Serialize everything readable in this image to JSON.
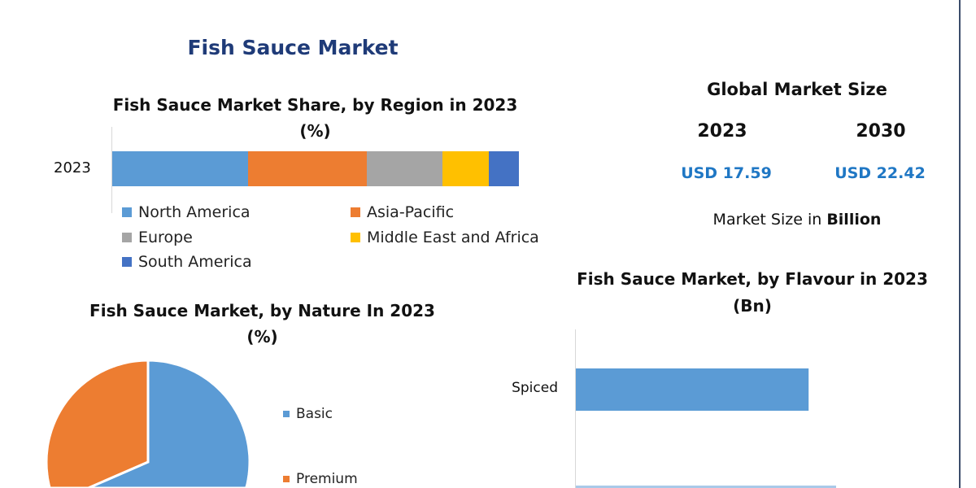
{
  "title": "Fish Sauce Market",
  "market_size": {
    "heading": "Global Market Size",
    "years": [
      "2023",
      "2030"
    ],
    "values": [
      "USD 17.59",
      "USD 22.42"
    ],
    "note_prefix": "Market Size in ",
    "note_unit": "Billion"
  },
  "chart_data": [
    {
      "type": "bar",
      "orientation": "horizontal-stacked",
      "title": "Fish Sauce Market Share, by Region in 2023",
      "subtitle": "(%)",
      "categories": [
        "2023"
      ],
      "series": [
        {
          "name": "North America",
          "values": [
            33.4
          ],
          "color": "#5b9bd5"
        },
        {
          "name": "Asia-Pacific",
          "values": [
            29.2
          ],
          "color": "#ed7d31"
        },
        {
          "name": "Europe",
          "values": [
            18.6
          ],
          "color": "#a5a5a5"
        },
        {
          "name": "Middle East and Africa",
          "values": [
            11.4
          ],
          "color": "#ffc000"
        },
        {
          "name": "South America",
          "values": [
            7.4
          ],
          "color": "#4472c4"
        }
      ],
      "xlim": [
        0,
        100
      ],
      "legend": "bottom"
    },
    {
      "type": "pie",
      "title": "Fish Sauce Market, by Nature In 2023",
      "subtitle": "(%)",
      "slices": [
        {
          "name": "Basic",
          "value": 60,
          "color": "#5b9bd5"
        },
        {
          "name": "Premium",
          "value": 40,
          "color": "#ed7d31"
        }
      ],
      "legend": "right"
    },
    {
      "type": "bar",
      "orientation": "horizontal",
      "title": "Fish Sauce Market, by Flavour in 2023",
      "subtitle": "(Bn)",
      "categories": [
        "Spiced"
      ],
      "values": [
        9.0
      ],
      "xlim": [
        0,
        10
      ],
      "color": "#5b9bd5"
    }
  ]
}
